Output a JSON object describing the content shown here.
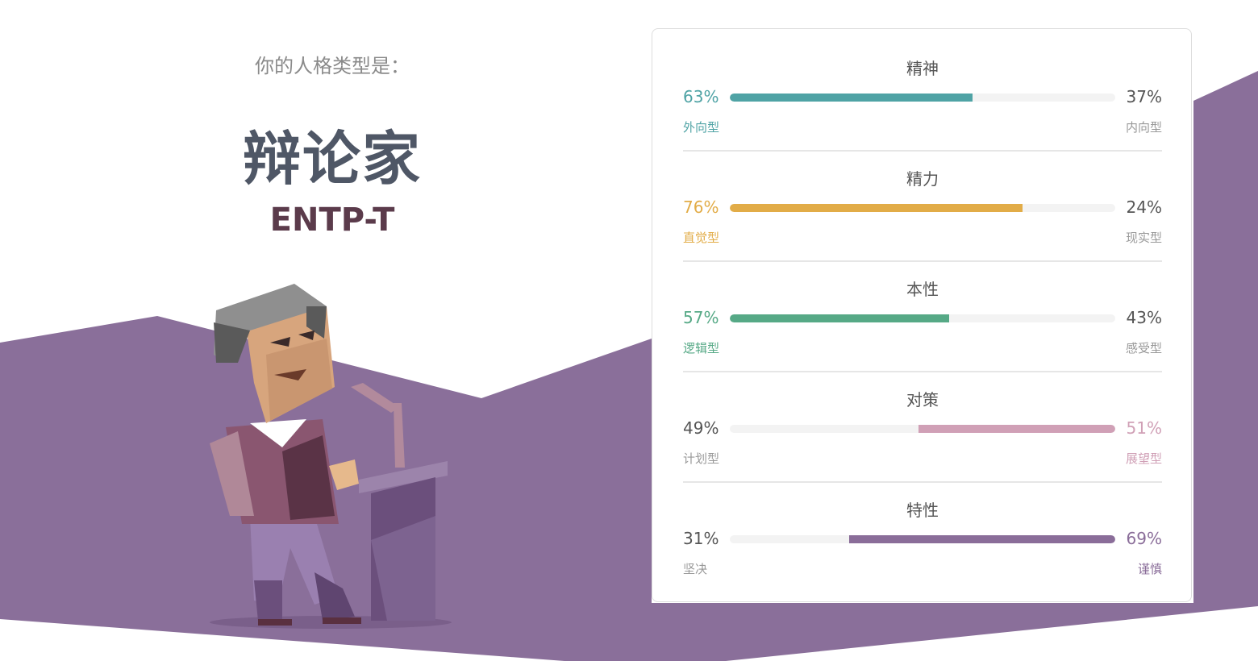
{
  "intro": "你的人格类型是：",
  "type_name": "辩论家",
  "type_code": "ENTP-T",
  "colors": {
    "background_purple": "#8a6f9a",
    "neutral_text": "#555555",
    "track": "#f3f3f3"
  },
  "traits": [
    {
      "title": "精神",
      "left_pct": "63%",
      "right_pct": "37%",
      "left_label": "外向型",
      "right_label": "内向型",
      "value": 63,
      "dominant": "left",
      "color": "#4fa3a5"
    },
    {
      "title": "精力",
      "left_pct": "76%",
      "right_pct": "24%",
      "left_label": "直觉型",
      "right_label": "现实型",
      "value": 76,
      "dominant": "left",
      "color": "#e2ac47"
    },
    {
      "title": "本性",
      "left_pct": "57%",
      "right_pct": "43%",
      "left_label": "逻辑型",
      "right_label": "感受型",
      "value": 57,
      "dominant": "left",
      "color": "#56a986"
    },
    {
      "title": "对策",
      "left_pct": "49%",
      "right_pct": "51%",
      "left_label": "计划型",
      "right_label": "展望型",
      "value": 51,
      "dominant": "right",
      "color": "#d0a0b6"
    },
    {
      "title": "特性",
      "left_pct": "31%",
      "right_pct": "69%",
      "left_label": "坚决",
      "right_label": "谨慎",
      "value": 69,
      "dominant": "right",
      "color": "#8a6d99"
    }
  ]
}
